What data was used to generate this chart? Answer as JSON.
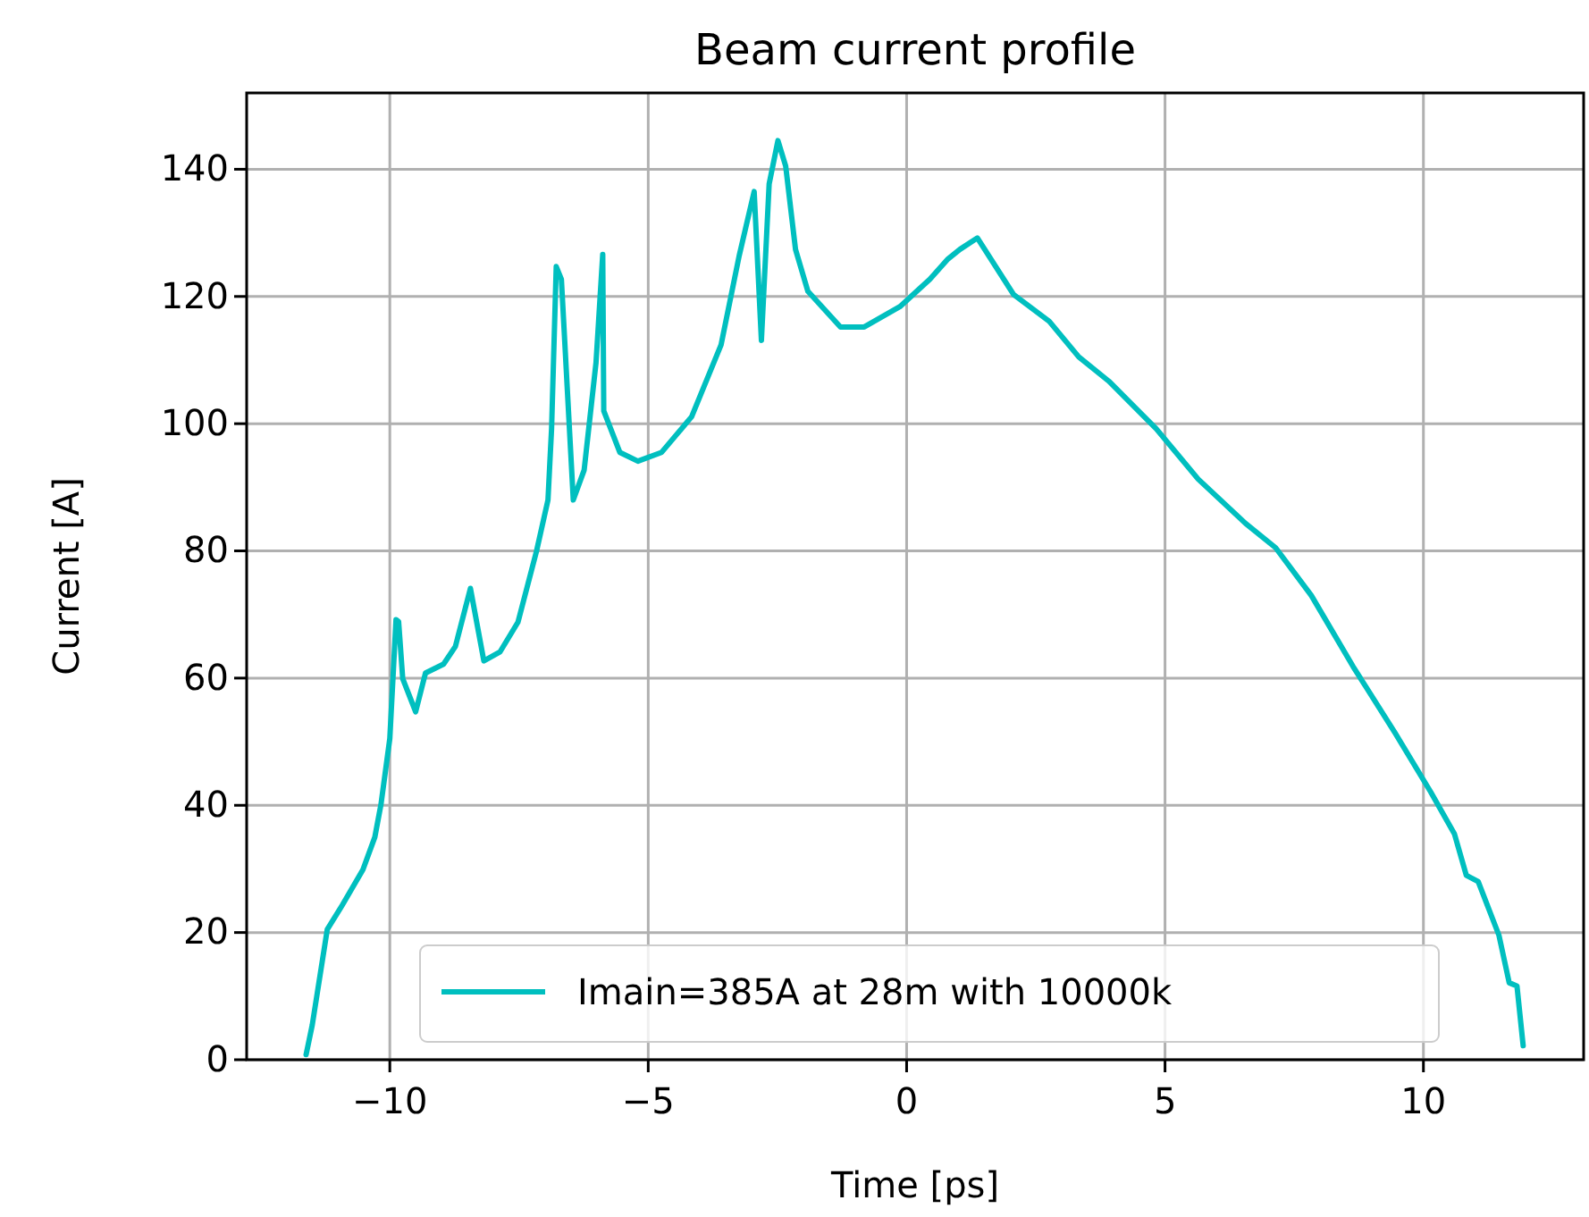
{
  "chart_data": {
    "type": "line",
    "title": "Beam current profile",
    "xlabel": "Time [ps]",
    "ylabel": "Current [A]",
    "xlim": [
      -12.77,
      13.1
    ],
    "ylim": [
      0,
      152
    ],
    "xticks": [
      {
        "value": -10,
        "label": "−10"
      },
      {
        "value": -5,
        "label": "−5"
      },
      0,
      5,
      10
    ],
    "yticks": [
      0,
      20,
      40,
      60,
      80,
      100,
      120,
      140
    ],
    "grid": true,
    "legend": "bottom",
    "line_style": "solid",
    "marker": "none",
    "series": [
      {
        "name": "Imain=385A at 28m with 10000k",
        "color": "#00bfbf",
        "x": [
          -11.62,
          -11.5,
          -11.21,
          -10.92,
          -10.52,
          -10.29,
          -10.17,
          -10,
          -9.88,
          -9.83,
          -9.75,
          -9.5,
          -9.31,
          -8.96,
          -8.73,
          -8.44,
          -8.18,
          -7.87,
          -7.52,
          -7.16,
          -6.94,
          -6.87,
          -6.78,
          -6.68,
          -6.45,
          -6.24,
          -6.01,
          -5.88,
          -5.86,
          -5.55,
          -5.2,
          -4.74,
          -4.16,
          -3.59,
          -3.24,
          -2.95,
          -2.81,
          -2.66,
          -2.49,
          -2.34,
          -2.15,
          -1.91,
          -1.28,
          -0.82,
          -0.13,
          0.45,
          0.8,
          1.03,
          1.37,
          2.07,
          2.76,
          3.33,
          3.91,
          4.83,
          5.64,
          6.56,
          7.14,
          7.83,
          8.64,
          9.45,
          10.14,
          10.6,
          10.83,
          11.06,
          11.46,
          11.66,
          11.81,
          11.93
        ],
        "values": [
          0.8,
          5.5,
          20.5,
          24.3,
          29.9,
          35,
          40.2,
          50.5,
          69.2,
          68.9,
          59.9,
          54.7,
          60.8,
          62.2,
          65,
          74.1,
          62.7,
          64.1,
          68.8,
          80,
          88,
          99.2,
          124.7,
          122.7,
          88,
          92.7,
          109.6,
          126.6,
          102,
          95.5,
          94.1,
          95.5,
          101.1,
          112.4,
          126.4,
          136.5,
          113.1,
          137.7,
          144.5,
          140.5,
          127.4,
          120.8,
          115.2,
          115.2,
          118.4,
          122.7,
          125.9,
          127.4,
          129.2,
          120.3,
          116.1,
          110.5,
          106.7,
          99.2,
          91.3,
          84.3,
          80.5,
          73,
          61.8,
          51.4,
          42.1,
          35.5,
          29,
          28,
          19.6,
          12.1,
          11.6,
          2.2
        ]
      }
    ]
  }
}
